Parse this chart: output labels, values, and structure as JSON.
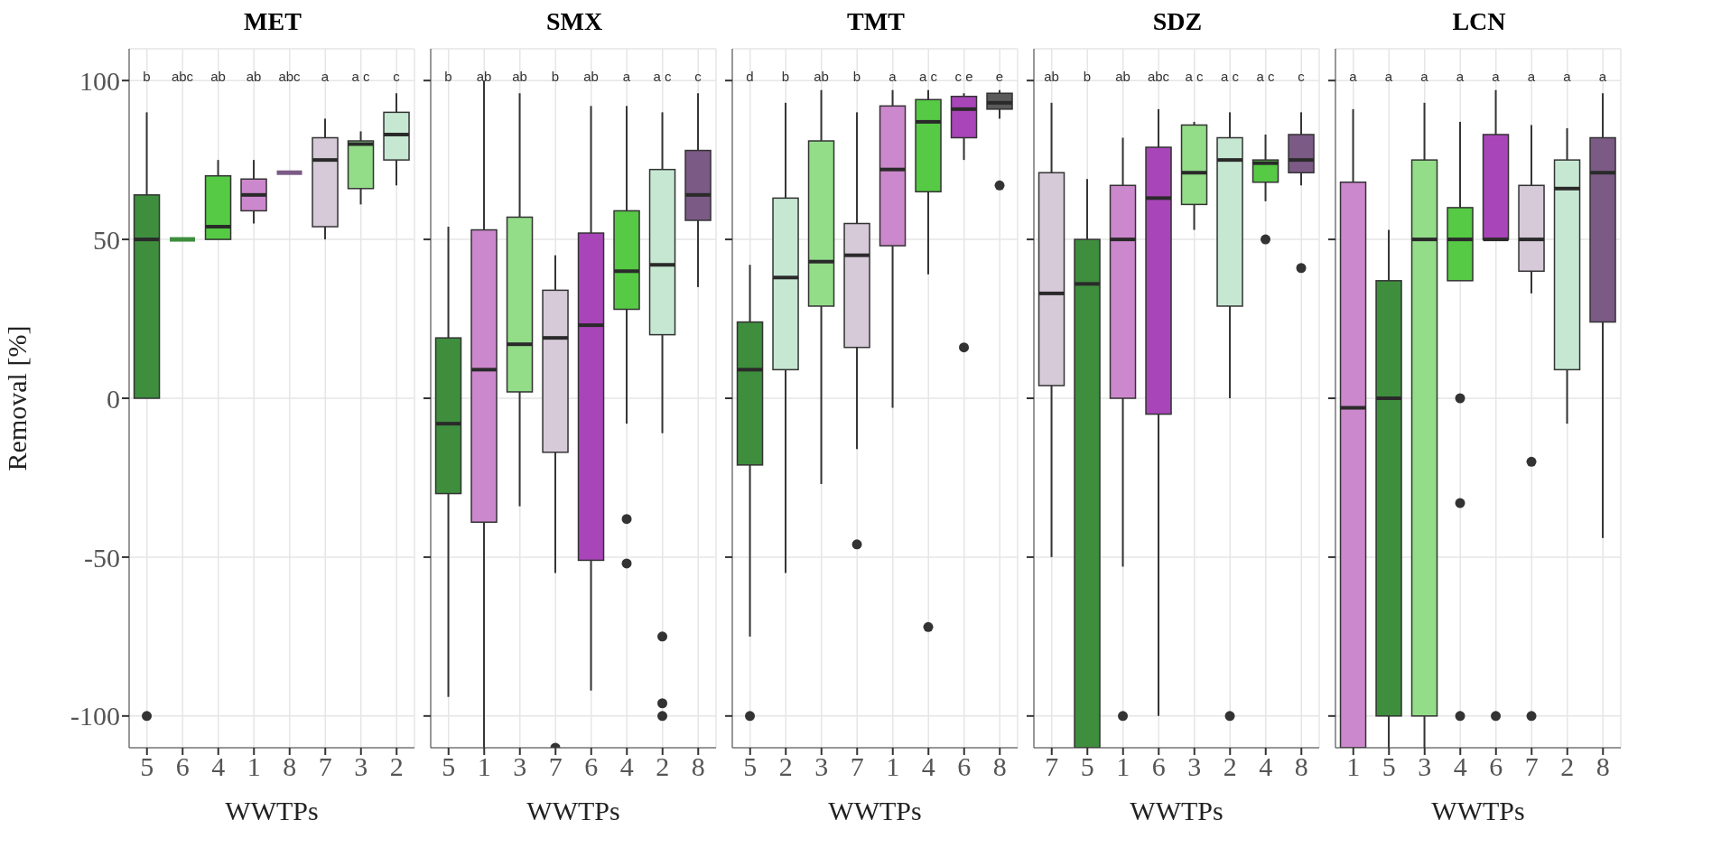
{
  "chart_data": [
    {
      "type": "box",
      "title": "MET",
      "xlabel": "WWTPs",
      "ylabel": "Removal [%]",
      "categories": [
        "5",
        "6",
        "4",
        "1",
        "8",
        "7",
        "3",
        "2"
      ],
      "colors": [
        "#3e8e3e",
        "#3e8e3e",
        "#56c945",
        "#cc88cc",
        "#7b5a86",
        "#d6c9d8",
        "#93dc88",
        "#c6e8d2"
      ],
      "boxes": [
        {
          "low": 0,
          "q1": 0,
          "median": 50,
          "q3": 64,
          "high": 90,
          "outliers": [
            -100
          ]
        },
        {
          "low": 50,
          "q1": 50,
          "median": 50,
          "q3": 50,
          "high": 50
        },
        {
          "low": 50,
          "q1": 50,
          "median": 54,
          "q3": 70,
          "high": 75
        },
        {
          "low": 55,
          "q1": 59,
          "median": 64,
          "q3": 69,
          "high": 75
        },
        {
          "low": 71,
          "q1": 71,
          "median": 71,
          "q3": 71,
          "high": 71
        },
        {
          "low": 50,
          "q1": 54,
          "median": 75,
          "q3": 82,
          "high": 88
        },
        {
          "low": 61,
          "q1": 66,
          "median": 80,
          "q3": 81,
          "high": 84
        },
        {
          "low": 67,
          "q1": 75,
          "median": 83,
          "q3": 90,
          "high": 96
        }
      ],
      "annotations": [
        "b",
        "abc",
        "ab",
        "ab",
        "abc",
        "a",
        "a c",
        "c"
      ],
      "ylim": [
        -110,
        110
      ],
      "yticks": [
        -100,
        -50,
        0,
        50,
        100
      ],
      "grid": true
    },
    {
      "type": "box",
      "title": "SMX",
      "xlabel": "WWTPs",
      "categories": [
        "5",
        "1",
        "3",
        "7",
        "6",
        "4",
        "2",
        "8"
      ],
      "colors": [
        "#3e8e3e",
        "#cc88cc",
        "#93dc88",
        "#d6c9d8",
        "#a845b8",
        "#56c945",
        "#c6e8d2",
        "#7b5a86"
      ],
      "boxes": [
        {
          "low": -94,
          "q1": -30,
          "median": -8,
          "q3": 19,
          "high": 54
        },
        {
          "low": -110,
          "q1": -39,
          "median": 9,
          "q3": 53,
          "high": 100
        },
        {
          "low": -34,
          "q1": 2,
          "median": 17,
          "q3": 57,
          "high": 96
        },
        {
          "low": -55,
          "q1": -17,
          "median": 19,
          "q3": 34,
          "high": 45,
          "outliers": [
            -110
          ]
        },
        {
          "low": -92,
          "q1": -51,
          "median": 23,
          "q3": 52,
          "high": 92
        },
        {
          "low": -8,
          "q1": 28,
          "median": 40,
          "q3": 59,
          "high": 92,
          "outliers": [
            -38,
            -52
          ]
        },
        {
          "low": -11,
          "q1": 20,
          "median": 42,
          "q3": 72,
          "high": 90,
          "outliers": [
            -75,
            -96,
            -100
          ]
        },
        {
          "low": 35,
          "q1": 56,
          "median": 64,
          "q3": 78,
          "high": 96
        }
      ],
      "annotations": [
        "b",
        "ab",
        "ab",
        "b",
        "ab",
        "a",
        "a c",
        "c"
      ],
      "ylim": [
        -110,
        110
      ],
      "yticks": [
        -100,
        -50,
        0,
        50,
        100
      ],
      "grid": true,
      "tick_labels": "x"
    },
    {
      "type": "box",
      "title": "TMT",
      "xlabel": "WWTPs",
      "categories": [
        "5",
        "2",
        "3",
        "7",
        "1",
        "4",
        "6",
        "8"
      ],
      "colors": [
        "#3e8e3e",
        "#c6e8d2",
        "#93dc88",
        "#d6c9d8",
        "#cc88cc",
        "#56c945",
        "#a845b8",
        "#5a5a5a"
      ],
      "boxes": [
        {
          "low": -75,
          "q1": -21,
          "median": 9,
          "q3": 24,
          "high": 42,
          "outliers": [
            -100
          ]
        },
        {
          "low": -55,
          "q1": 9,
          "median": 38,
          "q3": 63,
          "high": 93
        },
        {
          "low": -27,
          "q1": 29,
          "median": 43,
          "q3": 81,
          "high": 97
        },
        {
          "low": -16,
          "q1": 16,
          "median": 45,
          "q3": 55,
          "high": 90,
          "outliers": [
            -46
          ]
        },
        {
          "low": -3,
          "q1": 48,
          "median": 72,
          "q3": 92,
          "high": 97
        },
        {
          "low": 39,
          "q1": 65,
          "median": 87,
          "q3": 94,
          "high": 97,
          "outliers": [
            -72
          ]
        },
        {
          "low": 75,
          "q1": 82,
          "median": 91,
          "q3": 95,
          "high": 96,
          "outliers": [
            16
          ]
        },
        {
          "low": 88,
          "q1": 91,
          "median": 93,
          "q3": 96,
          "high": 97,
          "outliers": [
            67
          ]
        }
      ],
      "annotations": [
        "d",
        "b",
        "ab",
        "b",
        "a",
        "a c",
        "c e",
        "e"
      ],
      "ylim": [
        -110,
        110
      ],
      "yticks": [
        -100,
        -50,
        0,
        50,
        100
      ],
      "grid": true,
      "tick_labels": "x"
    },
    {
      "type": "box",
      "title": "SDZ",
      "xlabel": "WWTPs",
      "categories": [
        "7",
        "5",
        "1",
        "6",
        "3",
        "2",
        "4",
        "8"
      ],
      "colors": [
        "#d6c9d8",
        "#3e8e3e",
        "#cc88cc",
        "#a845b8",
        "#93dc88",
        "#c6e8d2",
        "#56c945",
        "#7b5a86"
      ],
      "boxes": [
        {
          "low": -50,
          "q1": 4,
          "median": 33,
          "q3": 71,
          "high": 93
        },
        {
          "low": -110,
          "q1": -110,
          "median": 36,
          "q3": 50,
          "high": 69
        },
        {
          "low": -53,
          "q1": 0,
          "median": 50,
          "q3": 67,
          "high": 82,
          "outliers": [
            -100
          ]
        },
        {
          "low": -100,
          "q1": -5,
          "median": 63,
          "q3": 79,
          "high": 91
        },
        {
          "low": 53,
          "q1": 61,
          "median": 71,
          "q3": 86,
          "high": 87
        },
        {
          "low": 0,
          "q1": 29,
          "median": 75,
          "q3": 82,
          "high": 90,
          "outliers": [
            -100
          ]
        },
        {
          "low": 62,
          "q1": 68,
          "median": 74,
          "q3": 75,
          "high": 83,
          "outliers": [
            50
          ]
        },
        {
          "low": 67,
          "q1": 71,
          "median": 75,
          "q3": 83,
          "high": 90,
          "outliers": [
            41
          ]
        }
      ],
      "annotations": [
        "ab",
        "b",
        "ab",
        "abc",
        "a c",
        "a c",
        "a c",
        "c"
      ],
      "ylim": [
        -110,
        110
      ],
      "yticks": [
        -100,
        -50,
        0,
        50,
        100
      ],
      "grid": true,
      "tick_labels": "x"
    },
    {
      "type": "box",
      "title": "LCN",
      "xlabel": "WWTPs",
      "categories": [
        "1",
        "5",
        "3",
        "4",
        "6",
        "7",
        "2",
        "8"
      ],
      "colors": [
        "#cc88cc",
        "#3e8e3e",
        "#93dc88",
        "#56c945",
        "#a845b8",
        "#d6c9d8",
        "#c6e8d2",
        "#7b5a86"
      ],
      "boxes": [
        {
          "low": -110,
          "q1": -110,
          "median": -3,
          "q3": 68,
          "high": 91
        },
        {
          "low": -110,
          "q1": -100,
          "median": 0,
          "q3": 37,
          "high": 53
        },
        {
          "low": -110,
          "q1": -100,
          "median": 50,
          "q3": 75,
          "high": 93
        },
        {
          "low": 37,
          "q1": 37,
          "median": 50,
          "q3": 60,
          "high": 87,
          "outliers": [
            0,
            -33,
            -100
          ]
        },
        {
          "low": 50,
          "q1": 50,
          "median": 50,
          "q3": 83,
          "high": 97,
          "outliers": [
            -100
          ]
        },
        {
          "low": 33,
          "q1": 40,
          "median": 50,
          "q3": 67,
          "high": 86,
          "outliers": [
            -20,
            -100
          ]
        },
        {
          "low": -8,
          "q1": 9,
          "median": 66,
          "q3": 75,
          "high": 85
        },
        {
          "low": -44,
          "q1": 24,
          "median": 71,
          "q3": 82,
          "high": 96
        }
      ],
      "annotations": [
        "a",
        "a",
        "a",
        "a",
        "a",
        "a",
        "a",
        "a"
      ],
      "ylim": [
        -110,
        110
      ],
      "yticks": [
        -100,
        -50,
        0,
        50,
        100
      ],
      "grid": true,
      "tick_labels": "x"
    }
  ]
}
